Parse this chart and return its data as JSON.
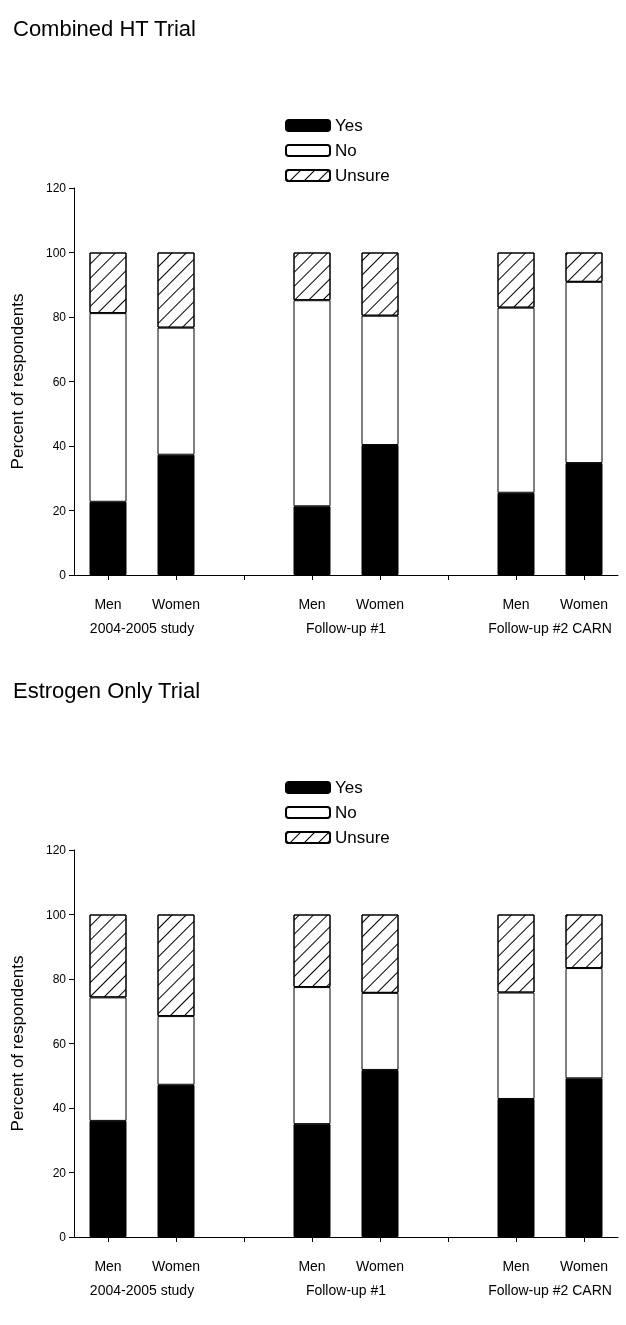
{
  "chart_data": [
    {
      "type": "bar",
      "title": "Combined HT Trial",
      "ylabel": "Percent of respondents",
      "categories": [
        "Men",
        "Women",
        null,
        "Men",
        "Women",
        null,
        "Men",
        "Women"
      ],
      "annotations": [
        "2004-2005 study",
        "Follow-up #1",
        "Follow-up #2 CARN"
      ],
      "stacked": true,
      "legend": "top",
      "grid": false,
      "ylim": [
        0,
        120
      ],
      "yticks": [
        0,
        20,
        40,
        60,
        80,
        100,
        120
      ],
      "series": [
        {
          "name": "Yes",
          "color": "#000000",
          "values": [
            22.7,
            37.3,
            null,
            21.3,
            40.3,
            null,
            25.5,
            34.7
          ]
        },
        {
          "name": "No",
          "color": "#ffffff",
          "values": [
            58.5,
            39.4,
            null,
            63.9,
            40.1,
            null,
            57.4,
            56.2
          ]
        },
        {
          "name": "Unsure",
          "color": "#ffffff",
          "values": [
            18.8,
            23.3,
            null,
            14.8,
            19.6,
            null,
            17.1,
            9.1
          ]
        }
      ]
    },
    {
      "type": "bar",
      "title": "Estrogen Only Trial",
      "ylabel": "Percent of respondents",
      "categories": [
        "Men",
        "Women",
        null,
        "Men",
        "Women",
        null,
        "Men",
        "Women"
      ],
      "annotations": [
        "2004-2005 study",
        "Follow-up #1",
        "Follow-up #2 CARN"
      ],
      "stacked": true,
      "legend": "top",
      "grid": false,
      "ylim": [
        0,
        120
      ],
      "yticks": [
        0,
        20,
        40,
        60,
        80,
        100,
        120
      ],
      "series": [
        {
          "name": "Yes",
          "color": "#000000",
          "values": [
            36.0,
            47.2,
            null,
            35.0,
            51.8,
            null,
            42.8,
            49.2
          ]
        },
        {
          "name": "No",
          "color": "#ffffff",
          "values": [
            38.3,
            21.3,
            null,
            42.5,
            23.9,
            null,
            33.0,
            34.2
          ]
        },
        {
          "name": "Unsure",
          "color": "#ffffff",
          "values": [
            25.7,
            31.5,
            null,
            22.5,
            24.3,
            null,
            24.2,
            16.6
          ]
        }
      ]
    }
  ]
}
